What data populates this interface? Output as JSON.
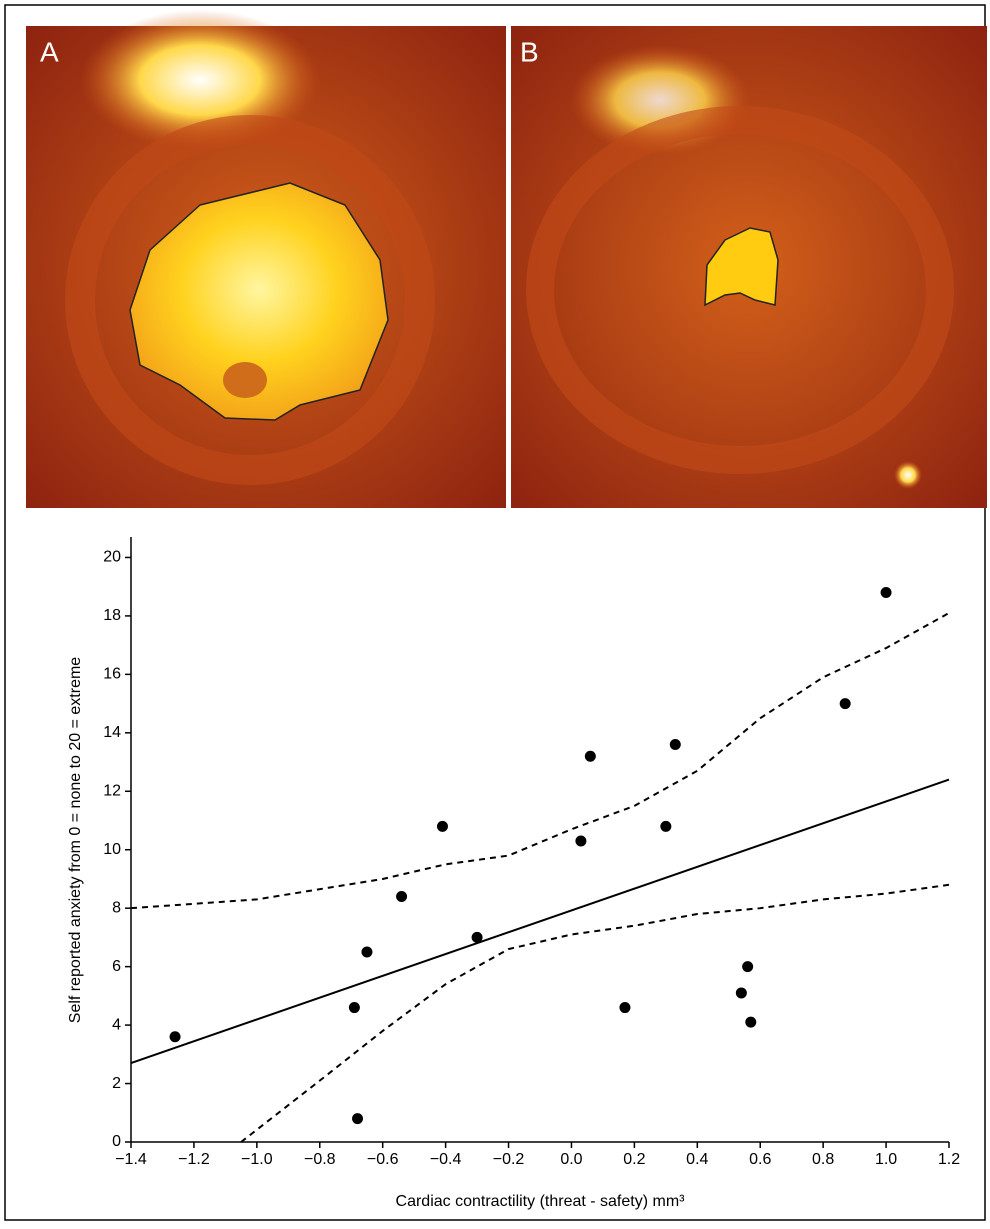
{
  "panel_labels": [
    "A",
    "B"
  ],
  "chart_data": {
    "type": "scatter",
    "x_label": "Cardiac contractility (threat - safety) mm³",
    "y_label": "Self reported anxiety from 0 = none to 20 = extreme",
    "xlim": [
      -1.4,
      1.2
    ],
    "ylim": [
      0,
      20.7
    ],
    "xticks": [
      {
        "value": -1.4,
        "label": "−1.4"
      },
      {
        "value": -1.2,
        "label": "−1.2"
      },
      {
        "value": -1.0,
        "label": "−1.0"
      },
      {
        "value": -0.8,
        "label": "−0.8"
      },
      {
        "value": -0.6,
        "label": "−0.6"
      },
      {
        "value": -0.4,
        "label": "−0.4"
      },
      {
        "value": -0.2,
        "label": "−0.2"
      },
      {
        "value": 0,
        "label": "0.0"
      },
      0.2,
      0.4,
      0.6,
      0.8,
      {
        "value": 1,
        "label": "1.0"
      },
      1.2
    ],
    "yticks": [
      0,
      2,
      4,
      6,
      8,
      10,
      12,
      14,
      16,
      18,
      20
    ],
    "color": "#000000",
    "points": {
      "x": [
        -1.26,
        -0.69,
        -0.68,
        -0.65,
        -0.54,
        -0.41,
        -0.3,
        0.03,
        0.06,
        0.17,
        0.3,
        0.33,
        0.54,
        0.56,
        0.57,
        0.87,
        1.0
      ],
      "values": [
        3.6,
        4.6,
        0.8,
        6.5,
        8.4,
        10.8,
        7.0,
        10.3,
        13.2,
        4.6,
        10.8,
        13.6,
        5.1,
        6.0,
        4.1,
        15.0,
        18.8
      ]
    },
    "fit": {
      "x": [
        -1.4,
        1.2
      ],
      "values": [
        2.7,
        12.4
      ]
    },
    "upper_band": {
      "x": [
        -1.4,
        -1.0,
        -0.6,
        -0.4,
        -0.2,
        0,
        0.2,
        0.4,
        0.6,
        0.8,
        1.0,
        1.2
      ],
      "values": [
        8.0,
        8.3,
        9.0,
        9.5,
        9.8,
        10.7,
        11.5,
        12.7,
        14.5,
        15.9,
        16.9,
        18.1
      ]
    },
    "lower_band": {
      "x": [
        -1.05,
        -0.8,
        -0.6,
        -0.4,
        -0.2,
        0,
        0.2,
        0.4,
        0.6,
        0.8,
        1.0,
        1.2
      ],
      "values": [
        0,
        2.1,
        3.8,
        5.4,
        6.6,
        7.1,
        7.4,
        7.8,
        8.0,
        8.3,
        8.5,
        8.8
      ]
    }
  }
}
